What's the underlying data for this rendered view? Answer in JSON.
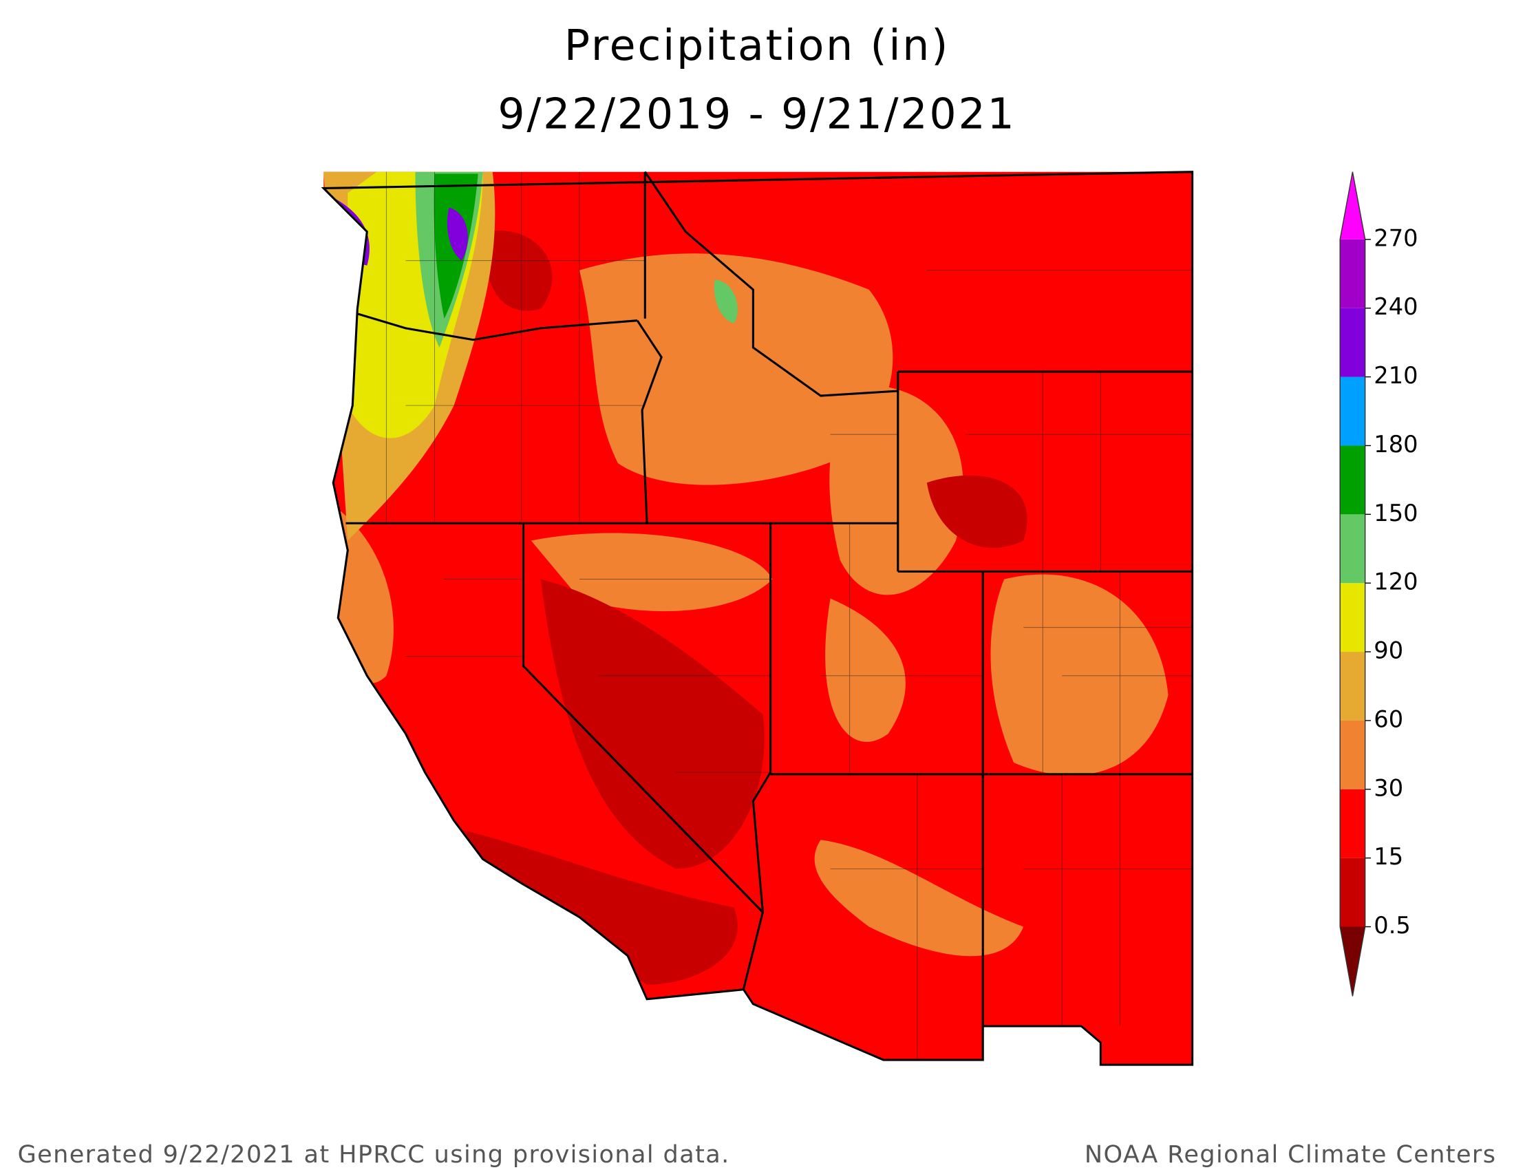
{
  "title": [
    "Precipitation (in)",
    "9/22/2019 - 9/21/2021"
  ],
  "legend": {
    "ticks": [
      0.5,
      15,
      30,
      60,
      90,
      120,
      150,
      180,
      210,
      240,
      270
    ],
    "colors": [
      "#c80000",
      "#ff0000",
      "#f08232",
      "#e6aa32",
      "#e6e600",
      "#64c864",
      "#00a000",
      "#00a0ff",
      "#8200dc",
      "#a000c8"
    ],
    "under_color": "#780000",
    "over_color": "#ff00ff"
  },
  "footer": {
    "left": "Generated 9/22/2021 at HPRCC using provisional data.",
    "right": "NOAA Regional Climate Centers"
  }
}
